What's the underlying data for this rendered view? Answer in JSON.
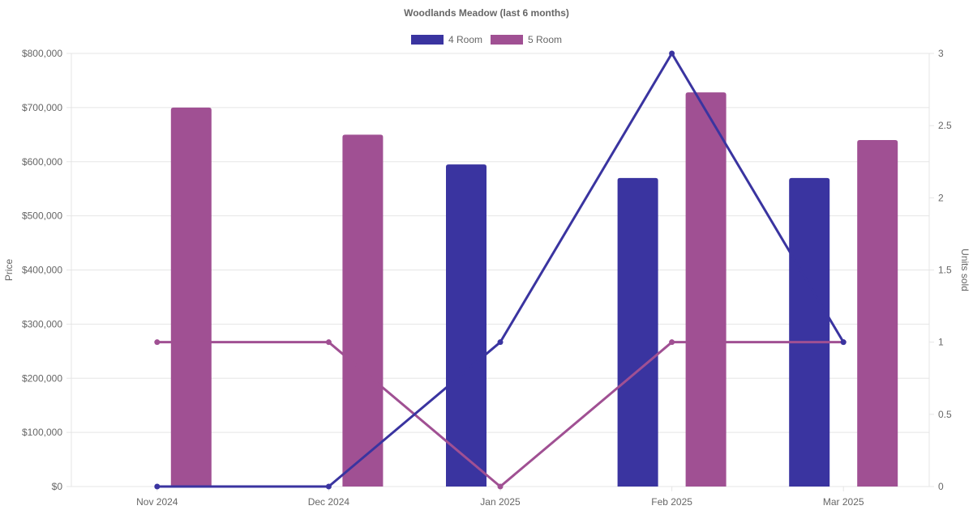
{
  "chart_data": {
    "type": "bar",
    "title": "Woodlands Meadow (last 6 months)",
    "categories": [
      "Nov 2024",
      "Dec 2024",
      "Jan 2025",
      "Feb 2025",
      "Mar 2025"
    ],
    "series": [
      {
        "name": "4 Room",
        "kind": "bar",
        "axis": "price",
        "color": "#3a34a0",
        "values": [
          null,
          null,
          595000,
          570000,
          570000
        ]
      },
      {
        "name": "5 Room",
        "kind": "bar",
        "axis": "price",
        "color": "#a05093",
        "values": [
          700000,
          650000,
          null,
          728000,
          640000
        ]
      },
      {
        "kind": "line",
        "axis": "units",
        "color": "#3a34a0",
        "values": [
          0,
          0,
          1,
          3,
          1
        ]
      },
      {
        "kind": "line",
        "axis": "units",
        "color": "#a05093",
        "values": [
          1,
          1,
          0,
          1,
          1
        ]
      }
    ],
    "ylabel": "Price",
    "y2label": "Units sold",
    "ylim": [
      0,
      800000
    ],
    "y2lim": [
      0,
      3
    ],
    "yticks": [
      "$0",
      "$100,000",
      "$200,000",
      "$300,000",
      "$400,000",
      "$500,000",
      "$600,000",
      "$700,000",
      "$800,000"
    ],
    "y2ticks": [
      "0",
      "0.5",
      "1",
      "1.5",
      "2",
      "2.5",
      "3"
    ],
    "legend_position": "top-center",
    "grid": true
  }
}
